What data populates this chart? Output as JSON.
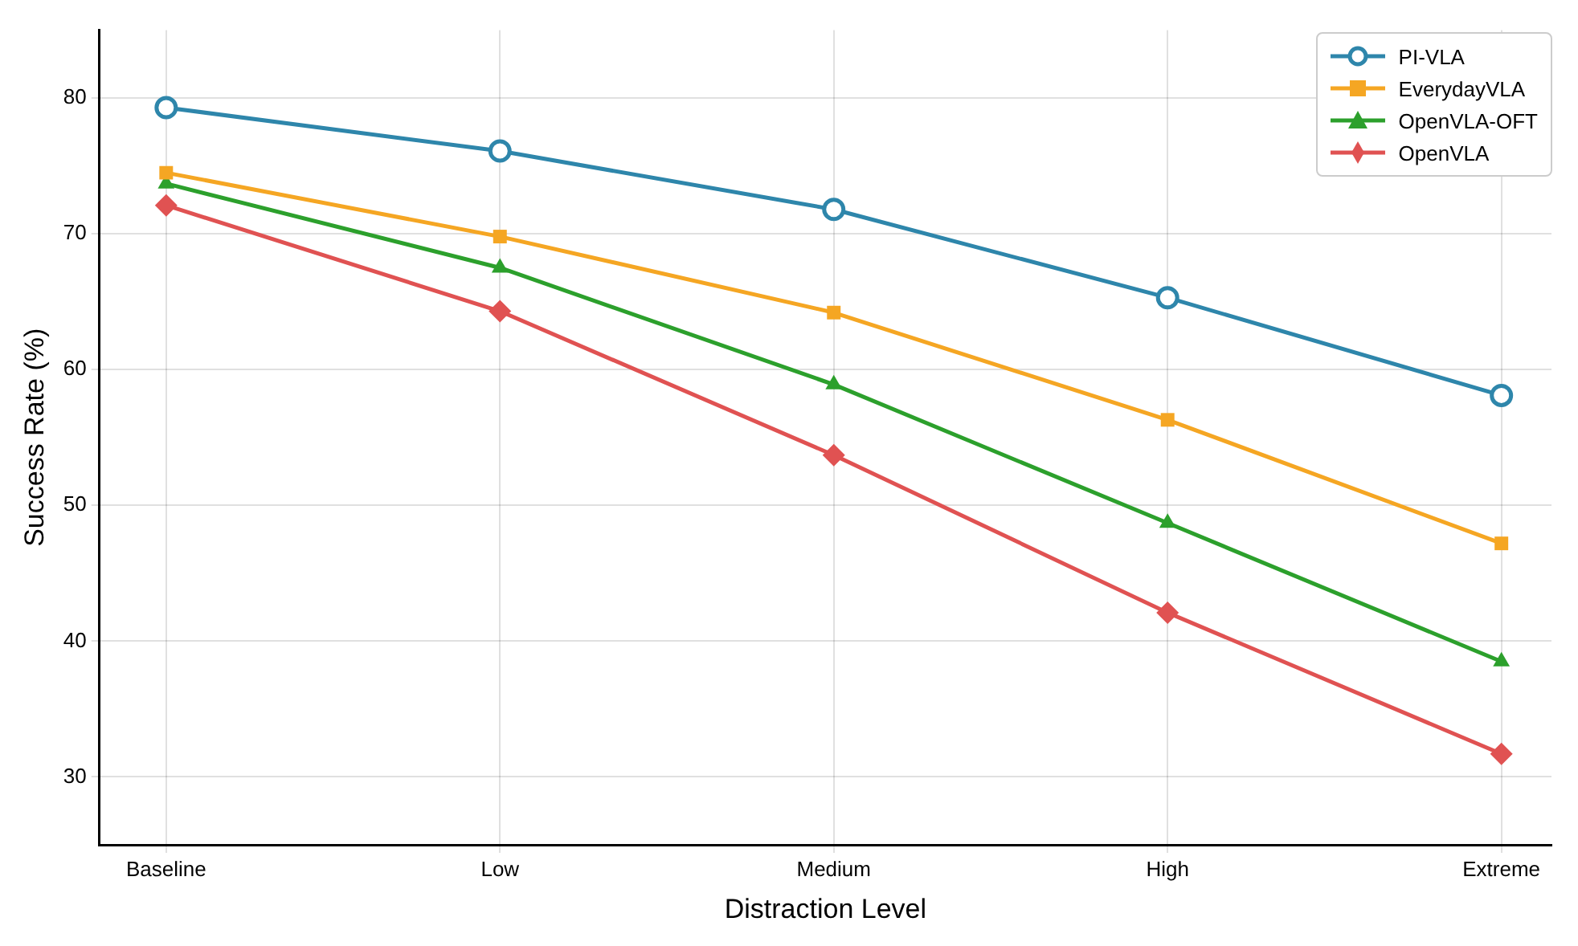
{
  "chart_data": {
    "type": "line",
    "xlabel": "Distraction Level",
    "ylabel": "Success Rate (%)",
    "categories": [
      "Baseline",
      "Low",
      "Medium",
      "High",
      "Extreme"
    ],
    "series": [
      {
        "name": "PI-VLA",
        "color": "#2e86ab",
        "marker": "circle",
        "values": [
          79.3,
          76.1,
          71.8,
          65.3,
          58.1
        ]
      },
      {
        "name": "EverydayVLA",
        "color": "#f5a623",
        "marker": "square",
        "values": [
          74.5,
          69.8,
          64.2,
          56.3,
          47.2
        ]
      },
      {
        "name": "OpenVLA-OFT",
        "color": "#2ca02c",
        "marker": "triangle",
        "values": [
          73.7,
          67.5,
          58.9,
          48.7,
          38.5
        ]
      },
      {
        "name": "OpenVLA",
        "color": "#e05252",
        "marker": "diamond",
        "values": [
          72.1,
          64.3,
          53.7,
          42.1,
          31.7
        ]
      }
    ],
    "ylim": [
      25,
      85
    ],
    "yticks": [
      30,
      40,
      50,
      60,
      70,
      80
    ],
    "grid": true,
    "legend": "top right",
    "line_style": "solid"
  }
}
